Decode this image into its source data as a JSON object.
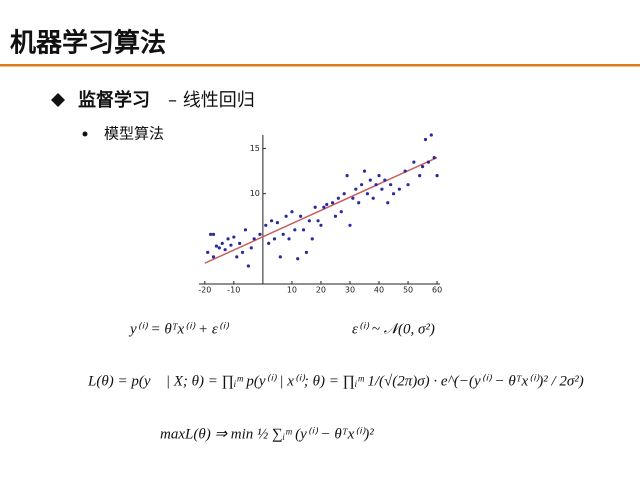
{
  "header": {
    "title": "机器学习算法"
  },
  "section": {
    "title": "监督学习",
    "subtitle": "– 线性回归"
  },
  "bullet": "模型算法",
  "chart_data": {
    "type": "scatter",
    "color": "#2a2a9a",
    "x": [
      -19,
      -18,
      -17,
      -17,
      -16,
      -15,
      -14,
      -13,
      -12,
      -11,
      -10,
      -9,
      -8,
      -7,
      -6,
      -5,
      -4,
      -3,
      -1,
      1,
      2,
      3,
      4,
      5,
      6,
      7,
      8,
      9,
      10,
      11,
      12,
      13,
      14,
      15,
      16,
      17,
      18,
      19,
      20,
      21,
      22,
      24,
      25,
      26,
      27,
      28,
      29,
      30,
      31,
      32,
      33,
      34,
      35,
      36,
      37,
      38,
      39,
      40,
      41,
      42,
      43,
      44,
      45,
      47,
      49,
      50,
      52,
      54,
      55,
      56,
      57,
      58,
      59,
      60
    ],
    "values": [
      3.5,
      5.5,
      3.0,
      5.5,
      4.2,
      4.0,
      4.5,
      3.8,
      5.0,
      4.3,
      5.2,
      3.0,
      4.5,
      3.5,
      6.0,
      2.0,
      4.0,
      5.0,
      5.5,
      6.5,
      4.5,
      7.0,
      5.0,
      6.8,
      3.0,
      5.5,
      7.5,
      5.0,
      8.0,
      6.0,
      2.8,
      7.5,
      6.0,
      3.5,
      7.0,
      5.0,
      8.5,
      7.0,
      6.5,
      8.5,
      8.8,
      9.0,
      7.5,
      9.5,
      8.0,
      10.0,
      12.0,
      6.5,
      9.5,
      10.5,
      9.0,
      11.0,
      12.5,
      10.0,
      11.5,
      9.5,
      11.0,
      12.0,
      10.5,
      11.5,
      9.0,
      11.0,
      10.0,
      10.5,
      12.5,
      11.0,
      13.5,
      12.0,
      13.0,
      16.0,
      13.5,
      16.5,
      14.0,
      12.0
    ],
    "fit_line": {
      "x": [
        -20,
        60
      ],
      "values": [
        2.3,
        14
      ],
      "color": "#c86060"
    },
    "xlim": [
      -22,
      61
    ],
    "ylim": [
      0,
      16.5
    ],
    "xticks": [
      -20,
      -10,
      10,
      20,
      30,
      40,
      50,
      60
    ],
    "yticks": [
      10,
      15
    ]
  },
  "formulas": {
    "model": "y⁽ⁱ⁾ = θᵀx⁽ⁱ⁾ + ε⁽ⁱ⁾",
    "noise": "ε⁽ⁱ⁾ ~ 𝒩(0, σ²)",
    "likelihood": "L(θ) = p(y⃗ | X; θ) = ∏ᵢᵐ p(y⁽ⁱ⁾ | x⁽ⁱ⁾; θ) = ∏ᵢᵐ 1/(√(2π)σ) · e^(−(y⁽ⁱ⁾ − θᵀx⁽ⁱ⁾)² / 2σ²)",
    "objective": "maxL(θ) ⇒ min ½ ∑ᵢᵐ (y⁽ⁱ⁾ − θᵀx⁽ⁱ⁾)²"
  }
}
